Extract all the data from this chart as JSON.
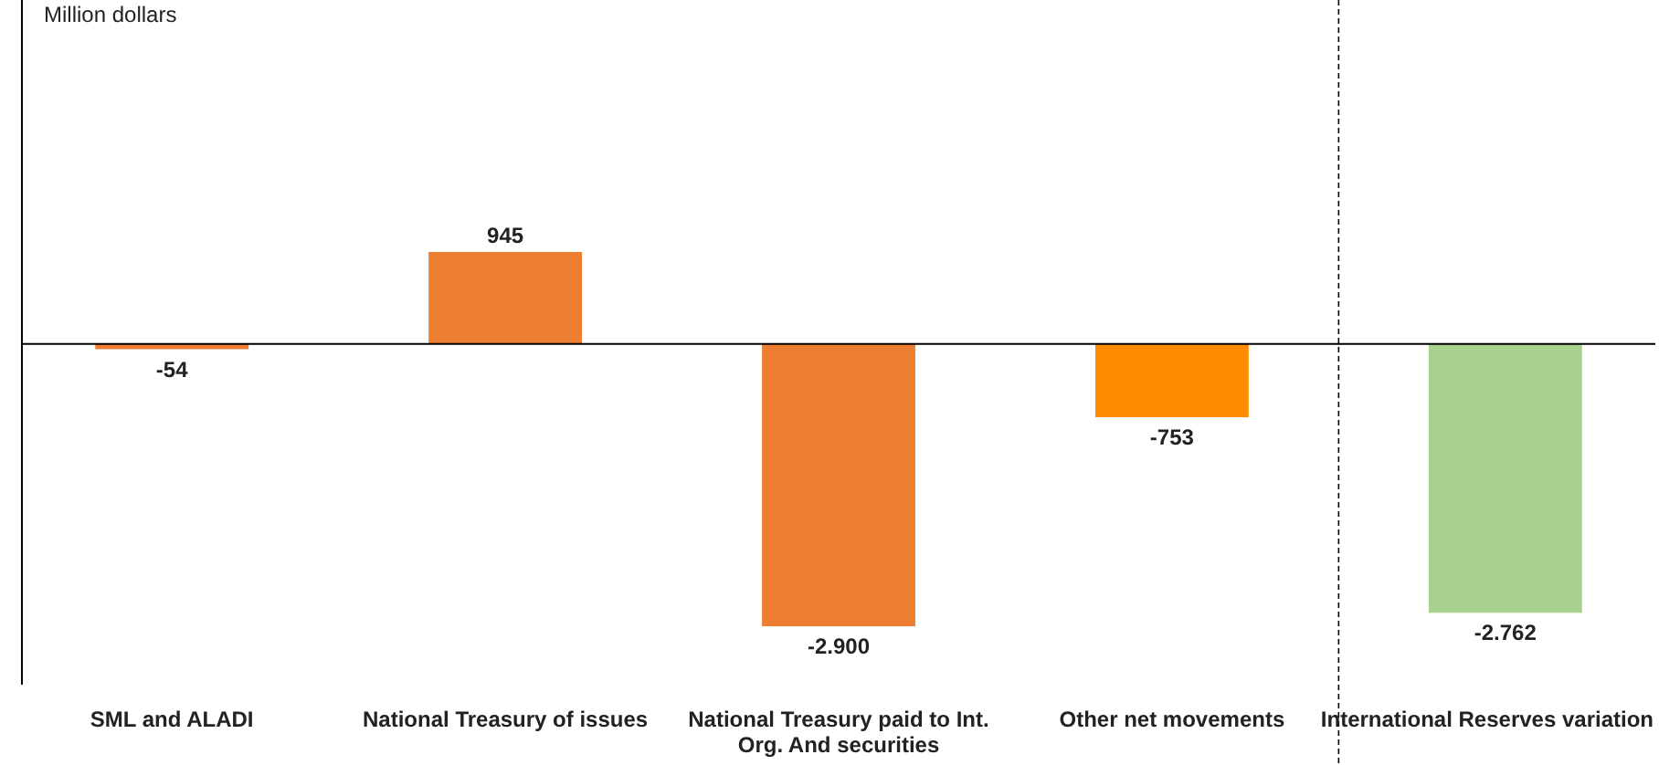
{
  "chart_data": {
    "type": "bar",
    "annotations": [
      "Million dollars"
    ],
    "categories": [
      "SML and ALADI",
      "National Treasury of issues",
      "National Treasury paid to Int. Org. And securities",
      "Other net movements",
      "International Reserves variation"
    ],
    "values": [
      -54,
      945,
      -2900,
      -753,
      -2762
    ],
    "colors": [
      "#ed7d31",
      "#ed7d31",
      "#ed7d31",
      "#ff8c00",
      "#a9d18e"
    ],
    "value_labels": [
      "-54",
      "945",
      "-2.900",
      "-753",
      "-2.762"
    ]
  }
}
